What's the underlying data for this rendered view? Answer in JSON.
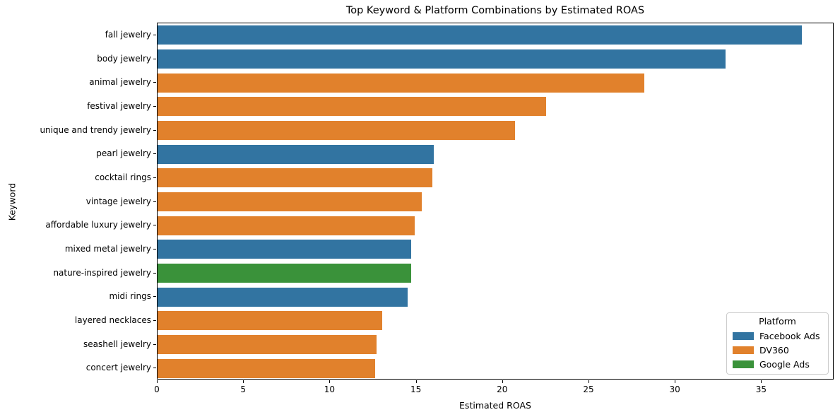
{
  "chart_data": {
    "type": "bar",
    "orientation": "horizontal",
    "title": "Top Keyword & Platform Combinations by Estimated ROAS",
    "xlabel": "Estimated ROAS",
    "ylabel": "Keyword",
    "xlim": [
      0,
      39.2
    ],
    "x_ticks": [
      0,
      5,
      10,
      15,
      20,
      25,
      30,
      35
    ],
    "grid": false,
    "legend": {
      "title": "Platform",
      "position": "lower right",
      "entries": [
        {
          "label": "Facebook Ads",
          "color": "#3274a1"
        },
        {
          "label": "DV360",
          "color": "#e1812c"
        },
        {
          "label": "Google Ads",
          "color": "#3a923a"
        }
      ]
    },
    "bars": [
      {
        "keyword": "fall jewelry",
        "platform": "Facebook Ads",
        "roas": 37.3
      },
      {
        "keyword": "body jewelry",
        "platform": "Facebook Ads",
        "roas": 32.9
      },
      {
        "keyword": "animal jewelry",
        "platform": "DV360",
        "roas": 28.2
      },
      {
        "keyword": "festival jewelry",
        "platform": "DV360",
        "roas": 22.5
      },
      {
        "keyword": "unique and trendy jewelry",
        "platform": "DV360",
        "roas": 20.7
      },
      {
        "keyword": "pearl jewelry",
        "platform": "Facebook Ads",
        "roas": 16.0
      },
      {
        "keyword": "cocktail rings",
        "platform": "DV360",
        "roas": 15.9
      },
      {
        "keyword": "vintage jewelry",
        "platform": "DV360",
        "roas": 15.3
      },
      {
        "keyword": "affordable luxury jewelry",
        "platform": "DV360",
        "roas": 14.9
      },
      {
        "keyword": "mixed metal jewelry",
        "platform": "Facebook Ads",
        "roas": 14.7
      },
      {
        "keyword": "nature-inspired jewelry",
        "platform": "Google Ads",
        "roas": 14.7
      },
      {
        "keyword": "midi rings",
        "platform": "Facebook Ads",
        "roas": 14.5
      },
      {
        "keyword": "layered necklaces",
        "platform": "DV360",
        "roas": 13.0
      },
      {
        "keyword": "seashell jewelry",
        "platform": "DV360",
        "roas": 12.7
      },
      {
        "keyword": "concert jewelry",
        "platform": "DV360",
        "roas": 12.6
      }
    ]
  }
}
